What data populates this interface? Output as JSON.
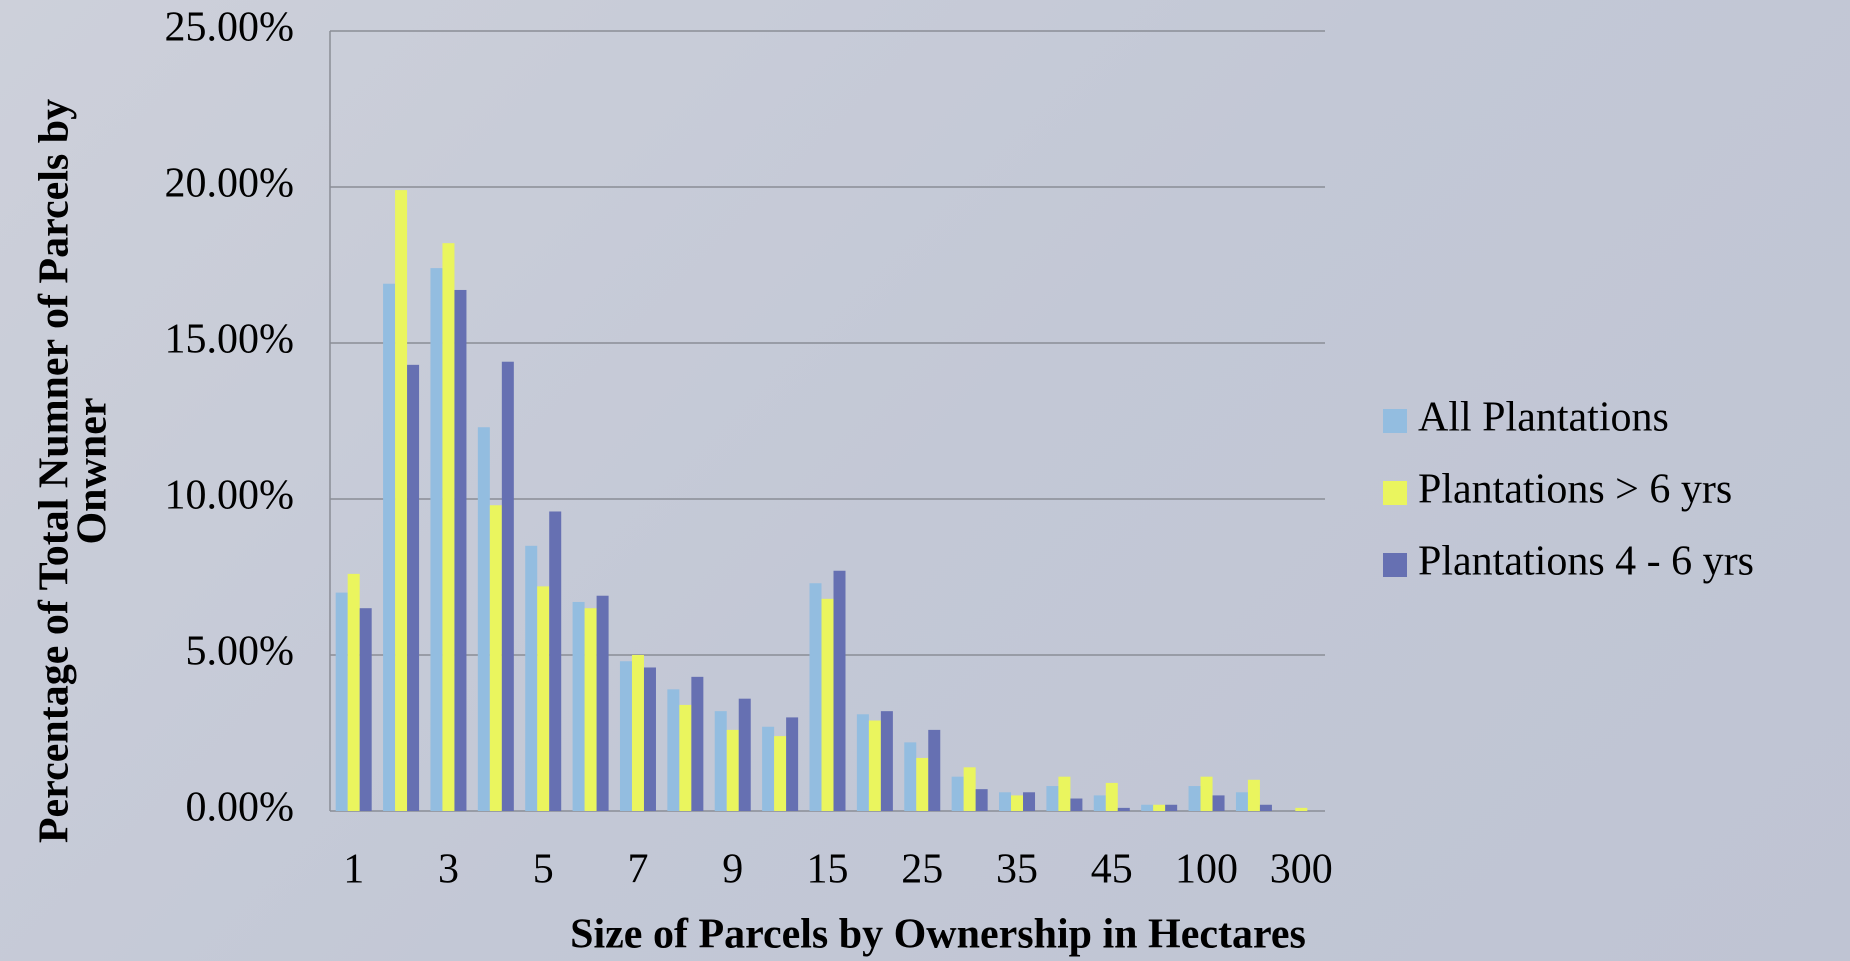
{
  "chart_data": {
    "type": "bar",
    "y_label": [
      "Percentage of Total Numner of Parcels by",
      "Onwner"
    ],
    "x_label": "Size of Parcels by Ownership in Hectares",
    "categories": [
      "1",
      null,
      "3",
      null,
      "5",
      null,
      "7",
      null,
      "9",
      null,
      "15",
      null,
      "25",
      null,
      "35",
      null,
      "45",
      null,
      "100",
      null,
      "300"
    ],
    "series": [
      {
        "name": "All Plantations",
        "color": "#93bde0",
        "values": [
          7.0,
          16.9,
          17.4,
          12.3,
          8.5,
          6.7,
          4.8,
          3.9,
          3.2,
          2.7,
          7.3,
          3.1,
          2.2,
          1.1,
          0.6,
          0.8,
          0.5,
          0.2,
          0.8,
          0.6,
          0
        ]
      },
      {
        "name": "Plantations > 6 yrs",
        "color": "#eaf55e",
        "values": [
          7.6,
          19.9,
          18.2,
          9.8,
          7.2,
          6.5,
          5.0,
          3.4,
          2.6,
          2.4,
          6.8,
          2.9,
          1.7,
          1.4,
          0.5,
          1.1,
          0.9,
          0.2,
          1.1,
          1.0,
          0.1
        ]
      },
      {
        "name": "Plantations 4 - 6 yrs",
        "color": "#6670b2",
        "values": [
          6.5,
          14.3,
          16.7,
          14.4,
          9.6,
          6.9,
          4.6,
          4.3,
          3.6,
          3.0,
          7.7,
          3.2,
          2.6,
          0.7,
          0.6,
          0.4,
          0.1,
          0.2,
          0.5,
          0.2,
          0
        ]
      }
    ],
    "ylim": [
      0,
      25
    ],
    "yticks": [
      {
        "value": 0,
        "label": "0.00%"
      },
      {
        "value": 5,
        "label": "5.00%"
      },
      {
        "value": 10,
        "label": "10.00%"
      },
      {
        "value": 15,
        "label": "15.00%"
      },
      {
        "value": 20,
        "label": "20.00%"
      },
      {
        "value": 25,
        "label": "25.00%"
      }
    ],
    "grid": true,
    "legend": "right"
  }
}
